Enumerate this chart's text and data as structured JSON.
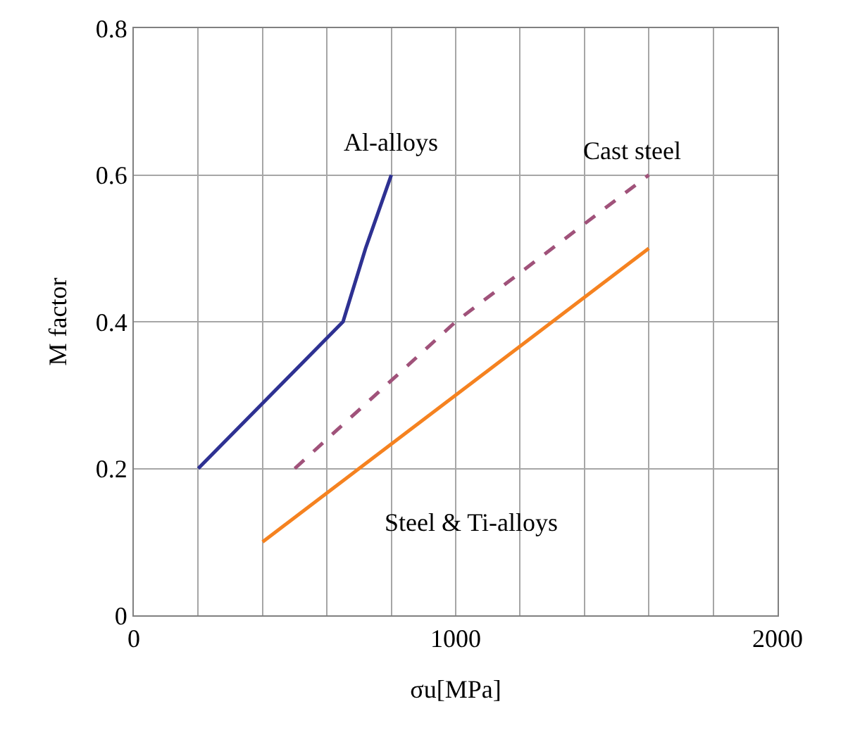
{
  "chart_data": {
    "type": "line",
    "xlabel": "σu[MPa]",
    "ylabel": "M factor",
    "xlim": [
      0,
      2000
    ],
    "ylim": [
      0,
      0.8
    ],
    "xticks": [
      0,
      {
        "value": 200,
        "label": null
      },
      {
        "value": 400,
        "label": null
      },
      {
        "value": 600,
        "label": null
      },
      {
        "value": 800,
        "label": null
      },
      1000,
      {
        "value": 1200,
        "label": null
      },
      {
        "value": 1400,
        "label": null
      },
      {
        "value": 1600,
        "label": null
      },
      {
        "value": 1800,
        "label": null
      },
      2000
    ],
    "yticks": [
      0,
      0.2,
      0.4,
      0.6,
      0.8
    ],
    "grid": true,
    "marker": "none",
    "series": [
      {
        "color": "#2e3192",
        "line_style": "solid",
        "x": [
          200,
          650,
          720,
          800
        ],
        "values": [
          0.2,
          0.4,
          0.5,
          0.6
        ]
      },
      {
        "color": "#a0527a",
        "line_style": "dashed",
        "x": [
          500,
          1000,
          1300,
          1600
        ],
        "values": [
          0.2,
          0.4,
          0.5,
          0.6
        ]
      },
      {
        "color": "#f58220",
        "line_style": "solid",
        "x": [
          400,
          1600
        ],
        "values": [
          0.1,
          0.5
        ]
      }
    ],
    "annotations": [
      "Al-alloys",
      "Cast steel",
      "Steel & Ti-alloys"
    ]
  }
}
